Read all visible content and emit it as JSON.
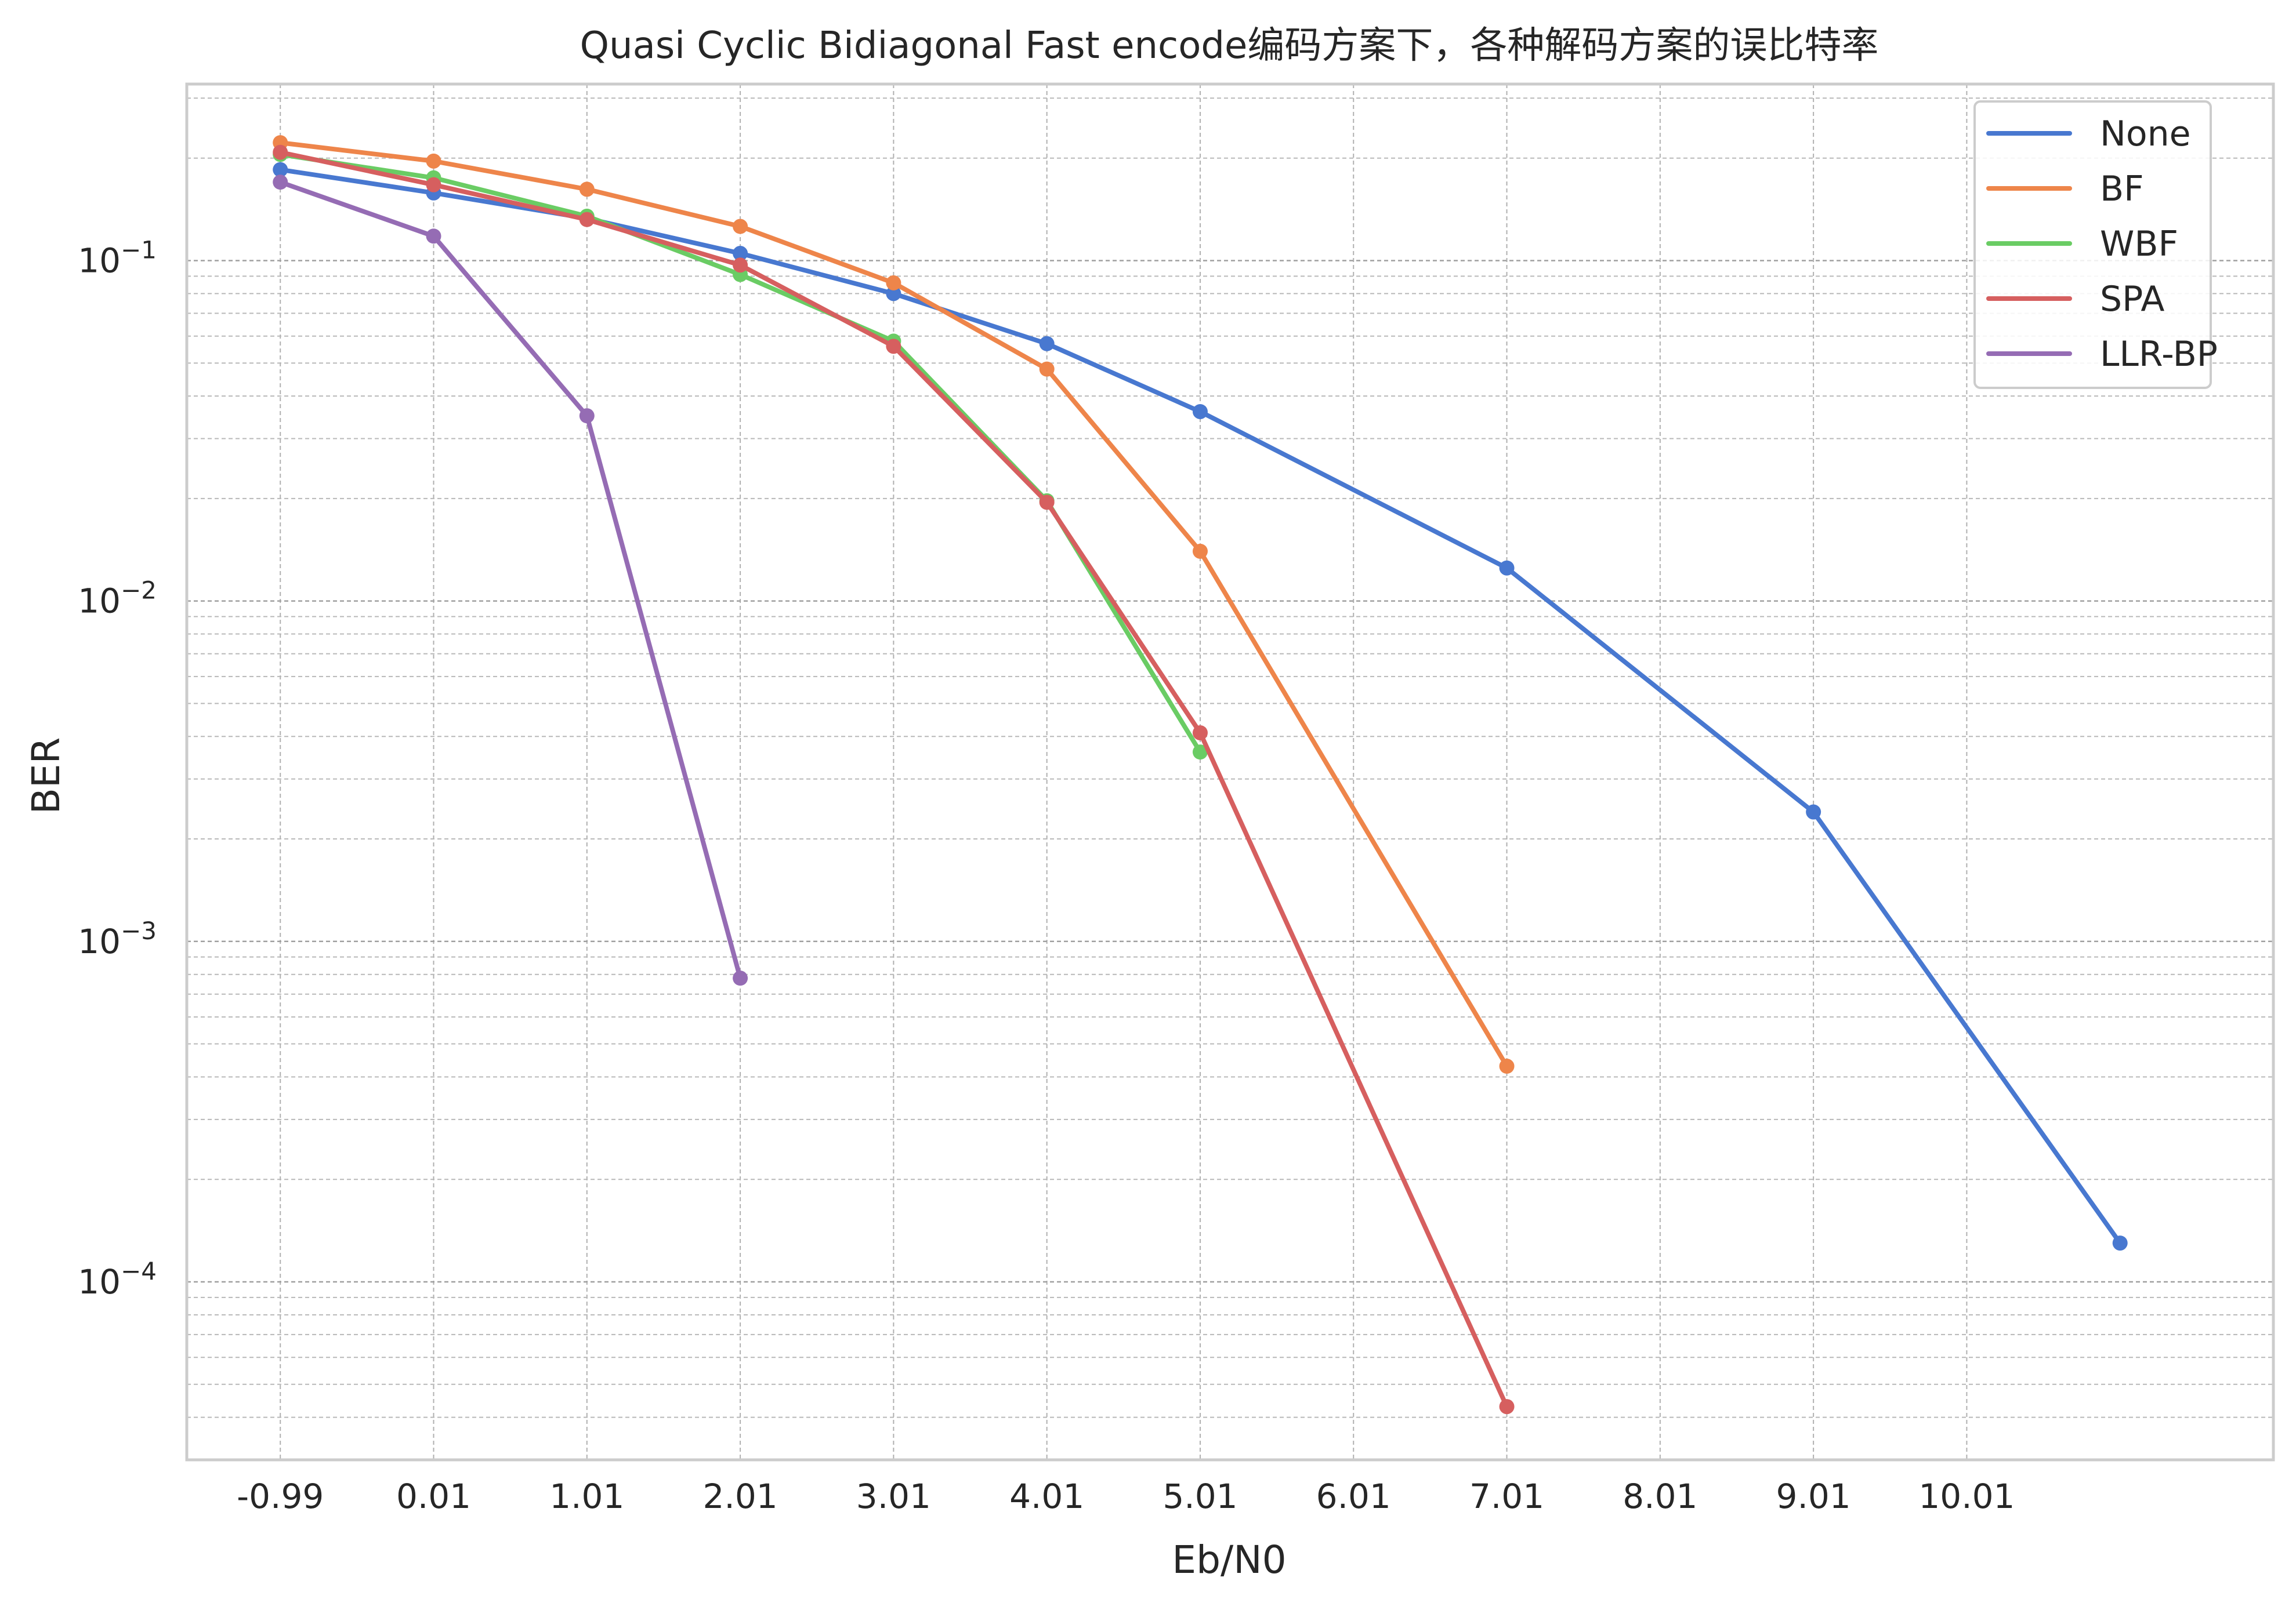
{
  "chart_data": {
    "type": "line",
    "title": "Quasi Cyclic Bidiagonal Fast encode编码方案下，各种解码方案的误比特率",
    "xlabel": "Eb/N0",
    "ylabel": "BER",
    "yscale": "log",
    "xlim": [
      -1.6,
      12.01
    ],
    "ylim": [
      3e-05,
      0.33
    ],
    "x_ticks": [
      "-0.99",
      "0.01",
      "1.01",
      "2.01",
      "3.01",
      "4.01",
      "5.01",
      "6.01",
      "7.01",
      "8.01",
      "9.01",
      "10.01"
    ],
    "x_tick_values": [
      -0.99,
      0.01,
      1.01,
      2.01,
      3.01,
      4.01,
      5.01,
      6.01,
      7.01,
      8.01,
      9.01,
      10.01
    ],
    "y_ticks": [
      {
        "value": 0.1,
        "base": "10",
        "exp": "−1"
      },
      {
        "value": 0.01,
        "base": "10",
        "exp": "−2"
      },
      {
        "value": 0.001,
        "base": "10",
        "exp": "−3"
      },
      {
        "value": 0.0001,
        "base": "10",
        "exp": "−4"
      }
    ],
    "grid": true,
    "legend_position": "upper-right",
    "series": [
      {
        "name": "None",
        "color": "#4878d0",
        "x": [
          -0.99,
          0.01,
          1.01,
          2.01,
          3.01,
          4.01,
          5.01,
          7.01,
          9.01,
          11.01
        ],
        "y": [
          0.185,
          0.158,
          0.133,
          0.105,
          0.08,
          0.057,
          0.036,
          0.0125,
          0.0024,
          0.00013
        ]
      },
      {
        "name": "BF",
        "color": "#ee854a",
        "x": [
          -0.99,
          0.01,
          1.01,
          2.01,
          3.01,
          4.01,
          5.01,
          7.01
        ],
        "y": [
          0.222,
          0.196,
          0.162,
          0.126,
          0.086,
          0.048,
          0.014,
          0.00043
        ]
      },
      {
        "name": "WBF",
        "color": "#6acc64",
        "x": [
          -0.99,
          0.01,
          1.01,
          2.01,
          3.01,
          4.01,
          5.01
        ],
        "y": [
          0.205,
          0.175,
          0.135,
          0.091,
          0.058,
          0.0197,
          0.0036
        ]
      },
      {
        "name": "SPA",
        "color": "#d65f5f",
        "x": [
          -0.99,
          0.01,
          1.01,
          2.01,
          3.01,
          4.01,
          5.01,
          7.01
        ],
        "y": [
          0.208,
          0.167,
          0.132,
          0.097,
          0.056,
          0.0195,
          0.0041,
          4.3e-05
        ]
      },
      {
        "name": "LLR-BP",
        "color": "#956cb4",
        "x": [
          -0.99,
          0.01,
          1.01,
          2.01
        ],
        "y": [
          0.17,
          0.118,
          0.035,
          0.00078
        ]
      }
    ]
  }
}
